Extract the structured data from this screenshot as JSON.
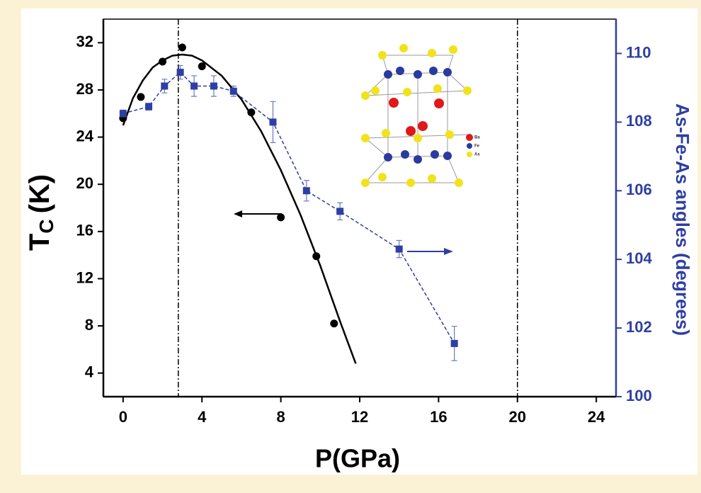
{
  "chart_data": {
    "type": "scatter",
    "x_label": "P(GPa)",
    "y_label": "T",
    "y_label_sub": "C",
    "y_label_unit": "(K)",
    "y2_label": "As-Fe-As angles (degrees)",
    "xlim": [
      -1,
      25
    ],
    "xticks": [
      0,
      4,
      8,
      12,
      16,
      20,
      24
    ],
    "ylim": [
      2,
      34
    ],
    "yticks": [
      4,
      8,
      12,
      16,
      20,
      24,
      28,
      32
    ],
    "y2lim": [
      100,
      111
    ],
    "y2ticks": [
      100,
      102,
      104,
      106,
      108,
      110
    ],
    "vlines": [
      2.8,
      20
    ],
    "inset_legend": [
      "Ba",
      "Fe",
      "As"
    ],
    "series": [
      {
        "type": "scatter",
        "marker": "circle",
        "color": "#000000",
        "x": [
          0,
          0.9,
          2,
          3,
          4,
          6.5,
          8,
          9.8,
          10.7
        ],
        "values": [
          25.6,
          27.4,
          30.4,
          31.6,
          30,
          26.1,
          17.2,
          13.9,
          8.2
        ]
      },
      {
        "type": "line",
        "color": "#000000",
        "x": [
          0,
          0.5,
          1,
          1.5,
          2,
          2.5,
          3,
          3.5,
          4,
          5,
          6,
          7,
          8,
          9,
          10,
          11,
          11.8
        ],
        "values": [
          25.0,
          27.3,
          28.8,
          29.9,
          30.5,
          30.9,
          31.0,
          30.9,
          30.5,
          29.2,
          27.2,
          24.5,
          21.2,
          17.4,
          13.1,
          8.4,
          4.8
        ]
      },
      {
        "type": "errorbar",
        "marker": "square",
        "line_style": "dashed",
        "axis": "y2",
        "color": "#2e3fa3",
        "x": [
          0,
          1.3,
          2.1,
          2.9,
          3.6,
          4.6,
          5.6,
          7.6,
          9.3,
          11,
          14,
          16.8
        ],
        "values": [
          108.25,
          108.45,
          109.05,
          109.45,
          109.05,
          109.05,
          108.9,
          108.0,
          106.0,
          105.4,
          104.3,
          101.55
        ],
        "errors": [
          0.1,
          0.1,
          0.2,
          0.2,
          0.3,
          0.3,
          0.15,
          0.6,
          0.3,
          0.25,
          0.25,
          0.5
        ]
      }
    ]
  }
}
